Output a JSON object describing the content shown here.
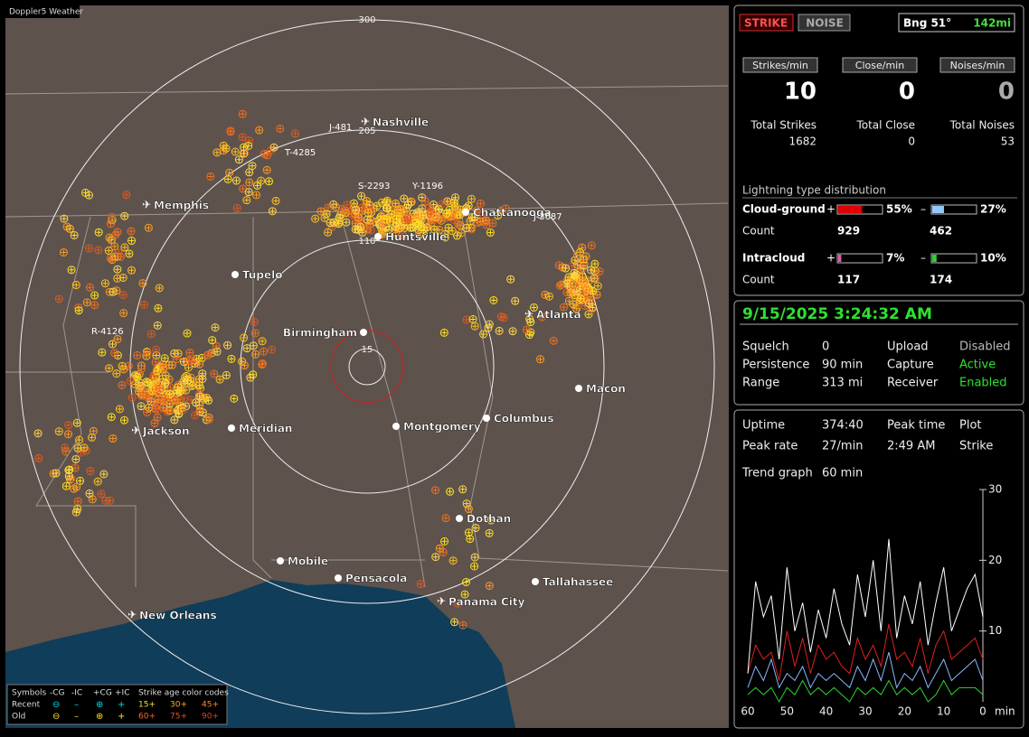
{
  "map": {
    "title": "Doppler5 Weather",
    "rings": [
      "300",
      "205",
      "110",
      "15"
    ],
    "cities": [
      {
        "name": "Nashville",
        "icon": "plane"
      },
      {
        "name": "Memphis",
        "icon": "plane"
      },
      {
        "name": "Chattanooga",
        "icon": "dot"
      },
      {
        "name": "Huntsville",
        "icon": "dot"
      },
      {
        "name": "Tupelo",
        "icon": "dot"
      },
      {
        "name": "Atlanta",
        "icon": "plane"
      },
      {
        "name": "Birmingham",
        "icon": "dot"
      },
      {
        "name": "Jackson",
        "icon": "plane"
      },
      {
        "name": "Meridian",
        "icon": "dot"
      },
      {
        "name": "Montgomery",
        "icon": "dot"
      },
      {
        "name": "Columbus",
        "icon": "dot"
      },
      {
        "name": "Macon",
        "icon": "dot"
      },
      {
        "name": "Dothan",
        "icon": "dot"
      },
      {
        "name": "Mobile",
        "icon": "dot"
      },
      {
        "name": "Pensacola",
        "icon": "dot"
      },
      {
        "name": "Tallahassee",
        "icon": "dot"
      },
      {
        "name": "Panama City",
        "icon": "plane"
      },
      {
        "name": "New Orleans",
        "icon": "plane"
      }
    ],
    "stations": [
      "J-481",
      "T-4285",
      "S-2293",
      "Y-1196",
      "J-3687",
      "R-4126"
    ],
    "legend": {
      "symbols": "Symbols",
      "types": [
        "-CG",
        "-IC",
        "+CG",
        "+IC"
      ],
      "age_title": "Strike age color codes",
      "rows": [
        "Recent",
        "Old"
      ],
      "ages": [
        "15+",
        "30+",
        "45+",
        "60+",
        "75+",
        "90+"
      ]
    }
  },
  "status": {
    "strike_button": "STRIKE",
    "noise_button": "NOISE",
    "bearing": "Bng 51°",
    "distance": "142mi",
    "rates": [
      {
        "label": "Strikes/min",
        "value": 10
      },
      {
        "label": "Close/min",
        "value": 0
      },
      {
        "label": "Noises/min",
        "value": 0
      }
    ],
    "totals": [
      {
        "label": "Total Strikes",
        "value": 1682
      },
      {
        "label": "Total Close",
        "value": 0
      },
      {
        "label": "Total Noises",
        "value": 53
      }
    ],
    "distribution_title": "Lightning type distribution",
    "count_label": "Count",
    "types": [
      {
        "name": "Cloud-ground",
        "plus": {
          "sign": "+",
          "pct": {
            "value": 55,
            "label": "55%"
          },
          "count": 929
        },
        "minus": {
          "sign": "–",
          "pct": {
            "value": 27,
            "label": "27%"
          },
          "count": 462
        }
      },
      {
        "name": "Intracloud",
        "plus": {
          "sign": "+",
          "pct": {
            "value": 7,
            "label": "7%"
          },
          "count": 117
        },
        "minus": {
          "sign": "–",
          "pct": {
            "value": 10,
            "label": "10%"
          },
          "count": 174
        }
      }
    ]
  },
  "settings": {
    "datetime": "9/15/2025 3:24:32 AM",
    "rows": [
      [
        "Squelch",
        "0",
        "Upload",
        "Disabled"
      ],
      [
        "Persistence",
        "90 min",
        "Capture",
        "Active"
      ],
      [
        "Range",
        "313 mi",
        "Receiver",
        "Enabled"
      ]
    ]
  },
  "stats": {
    "rows": [
      [
        "Uptime",
        "374:40",
        "Peak time",
        "Plot"
      ],
      [
        "Peak rate",
        "27/min",
        "2:49 AM",
        "Strike"
      ]
    ],
    "trend_label": "Trend graph",
    "trend_span": "60 min"
  },
  "trend": {
    "x": [
      60,
      58,
      56,
      54,
      52,
      50,
      48,
      46,
      44,
      42,
      40,
      38,
      36,
      34,
      32,
      30,
      28,
      26,
      24,
      22,
      20,
      18,
      16,
      14,
      12,
      10,
      8,
      6,
      4,
      2,
      0
    ],
    "xlim": [
      60,
      0
    ],
    "xticks": [
      60,
      50,
      40,
      30,
      20,
      10,
      0
    ],
    "x_unit": "min",
    "ylim": [
      0,
      30
    ],
    "yticks": [
      10,
      20,
      30
    ],
    "series": [
      {
        "color": "#ffffff",
        "values": [
          4,
          17,
          12,
          15,
          6,
          19,
          10,
          14,
          7,
          13,
          9,
          16,
          11,
          8,
          18,
          12,
          20,
          10,
          23,
          9,
          15,
          11,
          17,
          8,
          14,
          19,
          10,
          13,
          16,
          18,
          12
        ]
      },
      {
        "color": "#e02020",
        "values": [
          4,
          8,
          6,
          7,
          3,
          10,
          5,
          9,
          4,
          8,
          6,
          7,
          5,
          4,
          9,
          6,
          8,
          5,
          11,
          6,
          7,
          5,
          9,
          4,
          8,
          10,
          6,
          7,
          8,
          9,
          6
        ]
      },
      {
        "color": "#8ab8ff",
        "values": [
          2,
          5,
          3,
          6,
          2,
          4,
          3,
          5,
          2,
          4,
          3,
          4,
          3,
          2,
          5,
          3,
          6,
          3,
          7,
          2,
          4,
          3,
          5,
          2,
          4,
          6,
          3,
          4,
          5,
          6,
          3
        ]
      },
      {
        "color": "#30d030",
        "values": [
          1,
          2,
          1,
          2,
          0,
          2,
          1,
          3,
          1,
          2,
          1,
          2,
          1,
          0,
          2,
          1,
          2,
          1,
          3,
          1,
          2,
          1,
          2,
          0,
          1,
          3,
          1,
          2,
          2,
          2,
          1
        ]
      }
    ]
  }
}
